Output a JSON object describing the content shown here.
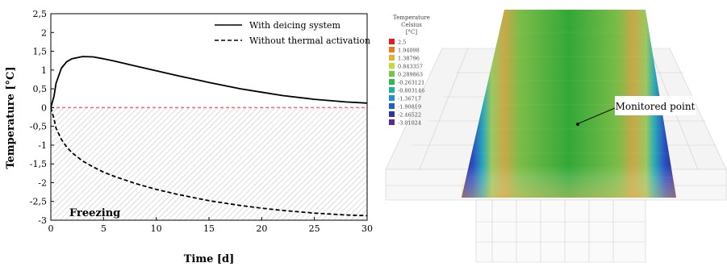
{
  "chart_data": {
    "type": "line",
    "xlabel": "Time [d]",
    "ylabel": "Temperature [°C]",
    "xlim": [
      0,
      30
    ],
    "ylim": [
      -3,
      2.5
    ],
    "xticks": [
      "0",
      "5",
      "10",
      "15",
      "20",
      "25",
      "30"
    ],
    "yticks": [
      "2,5",
      "2",
      "1,5",
      "1",
      "0,5",
      "0",
      "-0,5",
      "-1",
      "-1,5",
      "-2",
      "-2,5",
      "-3"
    ],
    "grid": false,
    "legend_position": "top-right",
    "annotations": [
      "Freezing"
    ],
    "series": [
      {
        "name": "With deicing system",
        "style": "solid",
        "x": [
          0,
          0.3,
          0.5,
          1,
          1.5,
          2,
          3,
          4,
          5,
          6,
          8,
          10,
          12,
          15,
          18,
          20,
          22,
          25,
          28,
          30
        ],
        "y": [
          0,
          0.3,
          0.65,
          1.05,
          1.22,
          1.3,
          1.36,
          1.35,
          1.3,
          1.24,
          1.11,
          0.98,
          0.85,
          0.67,
          0.5,
          0.41,
          0.32,
          0.22,
          0.15,
          0.12
        ]
      },
      {
        "name": "Without thermal activation",
        "style": "dashed",
        "x": [
          0,
          0.3,
          0.5,
          1,
          1.5,
          2,
          3,
          4,
          5,
          6,
          8,
          10,
          12,
          15,
          18,
          20,
          22,
          25,
          28,
          30
        ],
        "y": [
          0,
          -0.3,
          -0.55,
          -0.85,
          -1.05,
          -1.2,
          -1.42,
          -1.58,
          -1.72,
          -1.83,
          -2.02,
          -2.18,
          -2.31,
          -2.48,
          -2.61,
          -2.68,
          -2.74,
          -2.81,
          -2.86,
          -2.88
        ]
      }
    ],
    "reference_line": {
      "y": 0,
      "color": "#e8707a",
      "style": "dashed"
    }
  },
  "model": {
    "legend_title_lines": [
      "Temperature",
      "Celsius",
      "[°C]"
    ],
    "legend_entries": [
      {
        "label": "2.5",
        "color": "#e02020"
      },
      {
        "label": "1.94098",
        "color": "#f07820"
      },
      {
        "label": "1.38796",
        "color": "#e8b030"
      },
      {
        "label": "0.843357",
        "color": "#c8d838"
      },
      {
        "label": "0.289863",
        "color": "#70c840"
      },
      {
        "label": "-0.263121",
        "color": "#30b848"
      },
      {
        "label": "-0.803146",
        "color": "#20b0a0"
      },
      {
        "label": "-1.36717",
        "color": "#2090d0"
      },
      {
        "label": "-1.90819",
        "color": "#2060c8"
      },
      {
        "label": "-2.46522",
        "color": "#3038a0"
      },
      {
        "label": "-3.01024",
        "color": "#5a2a90"
      }
    ],
    "callout": "Monitored point"
  },
  "colors": {
    "series_line": "#000000",
    "hatch": "#b8b8b8",
    "zero_line": "#e8707a",
    "mesh": "#c8c8c8"
  }
}
